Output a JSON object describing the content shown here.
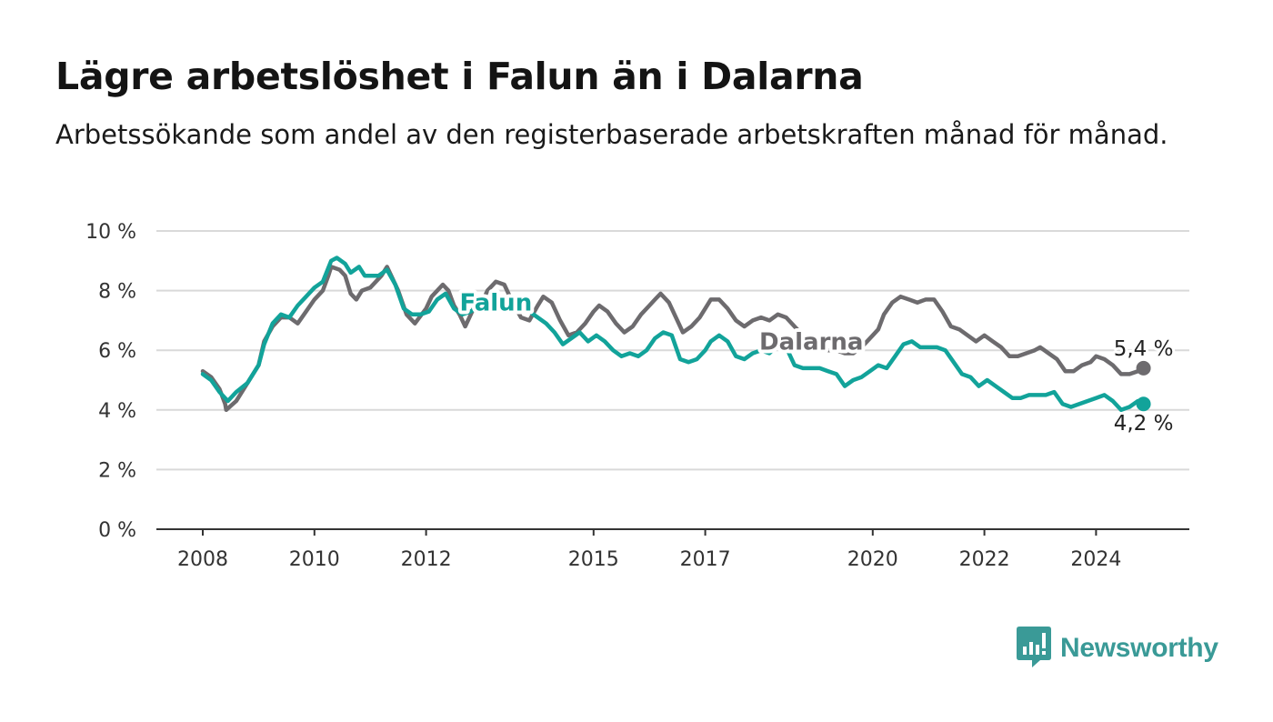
{
  "header": {
    "title": "Lägre arbetslöshet i Falun än i Dalarna",
    "subtitle": "Arbetssökande som andel av den registerbaserade arbetskraften månad för månad."
  },
  "brand": {
    "name": "Newsworthy",
    "icon": "newsworthy-logo-icon",
    "color": "#3a9a97"
  },
  "chart_data": {
    "type": "line",
    "title": "Lägre arbetslöshet i Falun än i Dalarna",
    "subtitle": "Arbetssökande som andel av den registerbaserade arbetskraften månad för månad.",
    "xlabel": "",
    "ylabel": "",
    "ylim": [
      0,
      10
    ],
    "xlim": [
      2008,
      2025.8
    ],
    "grid": true,
    "x_ticks": [
      {
        "value": 2008,
        "label": "2008"
      },
      {
        "value": 2010,
        "label": "2010"
      },
      {
        "value": 2012,
        "label": "2012"
      },
      {
        "value": 2015,
        "label": "2015"
      },
      {
        "value": 2017,
        "label": "2017"
      },
      {
        "value": 2020,
        "label": "2020"
      },
      {
        "value": 2022,
        "label": "2022"
      },
      {
        "value": 2024,
        "label": "2024"
      }
    ],
    "y_ticks": [
      {
        "value": 0,
        "label": "0 %"
      },
      {
        "value": 2,
        "label": "2 %"
      },
      {
        "value": 4,
        "label": "4 %"
      },
      {
        "value": 6,
        "label": "6 %"
      },
      {
        "value": 8,
        "label": "8 %"
      },
      {
        "value": 10,
        "label": "10 %"
      }
    ],
    "series": [
      {
        "name": "Dalarna",
        "color": "#6d6b6e",
        "end_label": "5,4 %",
        "label_at": 2018.85,
        "points": [
          [
            2008.0,
            5.3
          ],
          [
            2008.15,
            5.1
          ],
          [
            2008.3,
            4.7
          ],
          [
            2008.4,
            4.2
          ],
          [
            2008.42,
            4.0
          ],
          [
            2008.6,
            4.3
          ],
          [
            2008.8,
            4.9
          ],
          [
            2009.0,
            5.5
          ],
          [
            2009.1,
            6.3
          ],
          [
            2009.25,
            6.8
          ],
          [
            2009.4,
            7.1
          ],
          [
            2009.55,
            7.1
          ],
          [
            2009.7,
            6.9
          ],
          [
            2009.85,
            7.3
          ],
          [
            2010.0,
            7.7
          ],
          [
            2010.15,
            8.0
          ],
          [
            2010.25,
            8.5
          ],
          [
            2010.3,
            8.8
          ],
          [
            2010.45,
            8.7
          ],
          [
            2010.55,
            8.5
          ],
          [
            2010.65,
            7.9
          ],
          [
            2010.75,
            7.7
          ],
          [
            2010.85,
            8.0
          ],
          [
            2011.0,
            8.1
          ],
          [
            2011.1,
            8.3
          ],
          [
            2011.2,
            8.5
          ],
          [
            2011.3,
            8.8
          ],
          [
            2011.4,
            8.4
          ],
          [
            2011.5,
            8.0
          ],
          [
            2011.65,
            7.2
          ],
          [
            2011.8,
            6.9
          ],
          [
            2012.0,
            7.4
          ],
          [
            2012.1,
            7.8
          ],
          [
            2012.2,
            8.0
          ],
          [
            2012.3,
            8.2
          ],
          [
            2012.4,
            8.0
          ],
          [
            2012.5,
            7.5
          ],
          [
            2012.6,
            7.2
          ],
          [
            2012.7,
            6.8
          ],
          [
            2012.85,
            7.4
          ],
          [
            2013.0,
            7.6
          ],
          [
            2013.1,
            8.0
          ],
          [
            2013.25,
            8.3
          ],
          [
            2013.4,
            8.2
          ],
          [
            2013.55,
            7.6
          ],
          [
            2013.7,
            7.1
          ],
          [
            2013.85,
            7.0
          ],
          [
            2014.0,
            7.5
          ],
          [
            2014.1,
            7.8
          ],
          [
            2014.25,
            7.6
          ],
          [
            2014.4,
            7.0
          ],
          [
            2014.55,
            6.5
          ],
          [
            2014.7,
            6.6
          ],
          [
            2014.85,
            6.9
          ],
          [
            2015.0,
            7.3
          ],
          [
            2015.1,
            7.5
          ],
          [
            2015.25,
            7.3
          ],
          [
            2015.4,
            6.9
          ],
          [
            2015.55,
            6.6
          ],
          [
            2015.7,
            6.8
          ],
          [
            2015.85,
            7.2
          ],
          [
            2016.0,
            7.5
          ],
          [
            2016.1,
            7.7
          ],
          [
            2016.2,
            7.9
          ],
          [
            2016.35,
            7.6
          ],
          [
            2016.5,
            7.0
          ],
          [
            2016.6,
            6.6
          ],
          [
            2016.75,
            6.8
          ],
          [
            2016.9,
            7.1
          ],
          [
            2017.0,
            7.4
          ],
          [
            2017.1,
            7.7
          ],
          [
            2017.25,
            7.7
          ],
          [
            2017.4,
            7.4
          ],
          [
            2017.55,
            7.0
          ],
          [
            2017.7,
            6.8
          ],
          [
            2017.85,
            7.0
          ],
          [
            2018.0,
            7.1
          ],
          [
            2018.15,
            7.0
          ],
          [
            2018.3,
            7.2
          ],
          [
            2018.45,
            7.1
          ],
          [
            2018.6,
            6.8
          ],
          [
            2018.75,
            6.5
          ],
          [
            2018.9,
            6.3
          ],
          [
            2019.05,
            6.1
          ],
          [
            2019.2,
            6.0
          ],
          [
            2019.35,
            6.0
          ],
          [
            2019.5,
            5.9
          ],
          [
            2019.65,
            5.9
          ],
          [
            2019.8,
            6.1
          ],
          [
            2020.0,
            6.5
          ],
          [
            2020.1,
            6.7
          ],
          [
            2020.2,
            7.2
          ],
          [
            2020.35,
            7.6
          ],
          [
            2020.5,
            7.8
          ],
          [
            2020.65,
            7.7
          ],
          [
            2020.8,
            7.6
          ],
          [
            2020.95,
            7.7
          ],
          [
            2021.1,
            7.7
          ],
          [
            2021.25,
            7.3
          ],
          [
            2021.4,
            6.8
          ],
          [
            2021.55,
            6.7
          ],
          [
            2021.7,
            6.5
          ],
          [
            2021.85,
            6.3
          ],
          [
            2022.0,
            6.5
          ],
          [
            2022.15,
            6.3
          ],
          [
            2022.3,
            6.1
          ],
          [
            2022.45,
            5.8
          ],
          [
            2022.6,
            5.8
          ],
          [
            2022.75,
            5.9
          ],
          [
            2022.9,
            6.0
          ],
          [
            2023.0,
            6.1
          ],
          [
            2023.15,
            5.9
          ],
          [
            2023.3,
            5.7
          ],
          [
            2023.45,
            5.3
          ],
          [
            2023.6,
            5.3
          ],
          [
            2023.75,
            5.5
          ],
          [
            2023.9,
            5.6
          ],
          [
            2024.0,
            5.8
          ],
          [
            2024.15,
            5.7
          ],
          [
            2024.3,
            5.5
          ],
          [
            2024.45,
            5.2
          ],
          [
            2024.6,
            5.2
          ],
          [
            2024.75,
            5.3
          ],
          [
            2024.85,
            5.4
          ]
        ]
      },
      {
        "name": "Falun",
        "color": "#12a39a",
        "end_label": "4,2 %",
        "label_at": 2013.2,
        "points": [
          [
            2008.0,
            5.2
          ],
          [
            2008.15,
            5.0
          ],
          [
            2008.3,
            4.6
          ],
          [
            2008.45,
            4.3
          ],
          [
            2008.6,
            4.6
          ],
          [
            2008.8,
            4.9
          ],
          [
            2009.0,
            5.5
          ],
          [
            2009.1,
            6.2
          ],
          [
            2009.25,
            6.9
          ],
          [
            2009.4,
            7.2
          ],
          [
            2009.55,
            7.1
          ],
          [
            2009.7,
            7.5
          ],
          [
            2009.85,
            7.8
          ],
          [
            2010.0,
            8.1
          ],
          [
            2010.15,
            8.3
          ],
          [
            2010.3,
            9.0
          ],
          [
            2010.4,
            9.1
          ],
          [
            2010.55,
            8.9
          ],
          [
            2010.65,
            8.6
          ],
          [
            2010.8,
            8.8
          ],
          [
            2010.9,
            8.5
          ],
          [
            2011.0,
            8.5
          ],
          [
            2011.15,
            8.5
          ],
          [
            2011.3,
            8.7
          ],
          [
            2011.45,
            8.2
          ],
          [
            2011.6,
            7.4
          ],
          [
            2011.75,
            7.2
          ],
          [
            2011.9,
            7.2
          ],
          [
            2012.05,
            7.3
          ],
          [
            2012.2,
            7.7
          ],
          [
            2012.35,
            7.9
          ],
          [
            2012.5,
            7.4
          ],
          [
            2012.65,
            7.2
          ],
          [
            2012.8,
            7.3
          ],
          [
            2012.95,
            7.5
          ],
          [
            2013.1,
            7.4
          ],
          [
            2013.25,
            7.6
          ],
          [
            2013.4,
            7.8
          ],
          [
            2013.55,
            7.7
          ],
          [
            2013.7,
            7.5
          ],
          [
            2013.85,
            7.3
          ],
          [
            2014.0,
            7.1
          ],
          [
            2014.15,
            6.9
          ],
          [
            2014.3,
            6.6
          ],
          [
            2014.45,
            6.2
          ],
          [
            2014.6,
            6.4
          ],
          [
            2014.75,
            6.6
          ],
          [
            2014.9,
            6.3
          ],
          [
            2015.05,
            6.5
          ],
          [
            2015.2,
            6.3
          ],
          [
            2015.35,
            6.0
          ],
          [
            2015.5,
            5.8
          ],
          [
            2015.65,
            5.9
          ],
          [
            2015.8,
            5.8
          ],
          [
            2015.95,
            6.0
          ],
          [
            2016.1,
            6.4
          ],
          [
            2016.25,
            6.6
          ],
          [
            2016.4,
            6.5
          ],
          [
            2016.55,
            5.7
          ],
          [
            2016.7,
            5.6
          ],
          [
            2016.85,
            5.7
          ],
          [
            2017.0,
            6.0
          ],
          [
            2017.1,
            6.3
          ],
          [
            2017.25,
            6.5
          ],
          [
            2017.4,
            6.3
          ],
          [
            2017.55,
            5.8
          ],
          [
            2017.7,
            5.7
          ],
          [
            2017.85,
            5.9
          ],
          [
            2018.0,
            6.0
          ],
          [
            2018.15,
            5.9
          ],
          [
            2018.3,
            6.2
          ],
          [
            2018.45,
            6.1
          ],
          [
            2018.6,
            5.5
          ],
          [
            2018.75,
            5.4
          ],
          [
            2018.9,
            5.4
          ],
          [
            2019.05,
            5.4
          ],
          [
            2019.2,
            5.3
          ],
          [
            2019.35,
            5.2
          ],
          [
            2019.5,
            4.8
          ],
          [
            2019.65,
            5.0
          ],
          [
            2019.8,
            5.1
          ],
          [
            2019.95,
            5.3
          ],
          [
            2020.1,
            5.5
          ],
          [
            2020.25,
            5.4
          ],
          [
            2020.4,
            5.8
          ],
          [
            2020.55,
            6.2
          ],
          [
            2020.7,
            6.3
          ],
          [
            2020.85,
            6.1
          ],
          [
            2021.0,
            6.1
          ],
          [
            2021.15,
            6.1
          ],
          [
            2021.3,
            6.0
          ],
          [
            2021.45,
            5.6
          ],
          [
            2021.6,
            5.2
          ],
          [
            2021.75,
            5.1
          ],
          [
            2021.9,
            4.8
          ],
          [
            2022.05,
            5.0
          ],
          [
            2022.2,
            4.8
          ],
          [
            2022.35,
            4.6
          ],
          [
            2022.5,
            4.4
          ],
          [
            2022.65,
            4.4
          ],
          [
            2022.8,
            4.5
          ],
          [
            2022.95,
            4.5
          ],
          [
            2023.1,
            4.5
          ],
          [
            2023.25,
            4.6
          ],
          [
            2023.4,
            4.2
          ],
          [
            2023.55,
            4.1
          ],
          [
            2023.7,
            4.2
          ],
          [
            2023.85,
            4.3
          ],
          [
            2024.0,
            4.4
          ],
          [
            2024.15,
            4.5
          ],
          [
            2024.3,
            4.3
          ],
          [
            2024.45,
            4.0
          ],
          [
            2024.6,
            4.1
          ],
          [
            2024.75,
            4.3
          ],
          [
            2024.85,
            4.2
          ]
        ]
      }
    ]
  }
}
